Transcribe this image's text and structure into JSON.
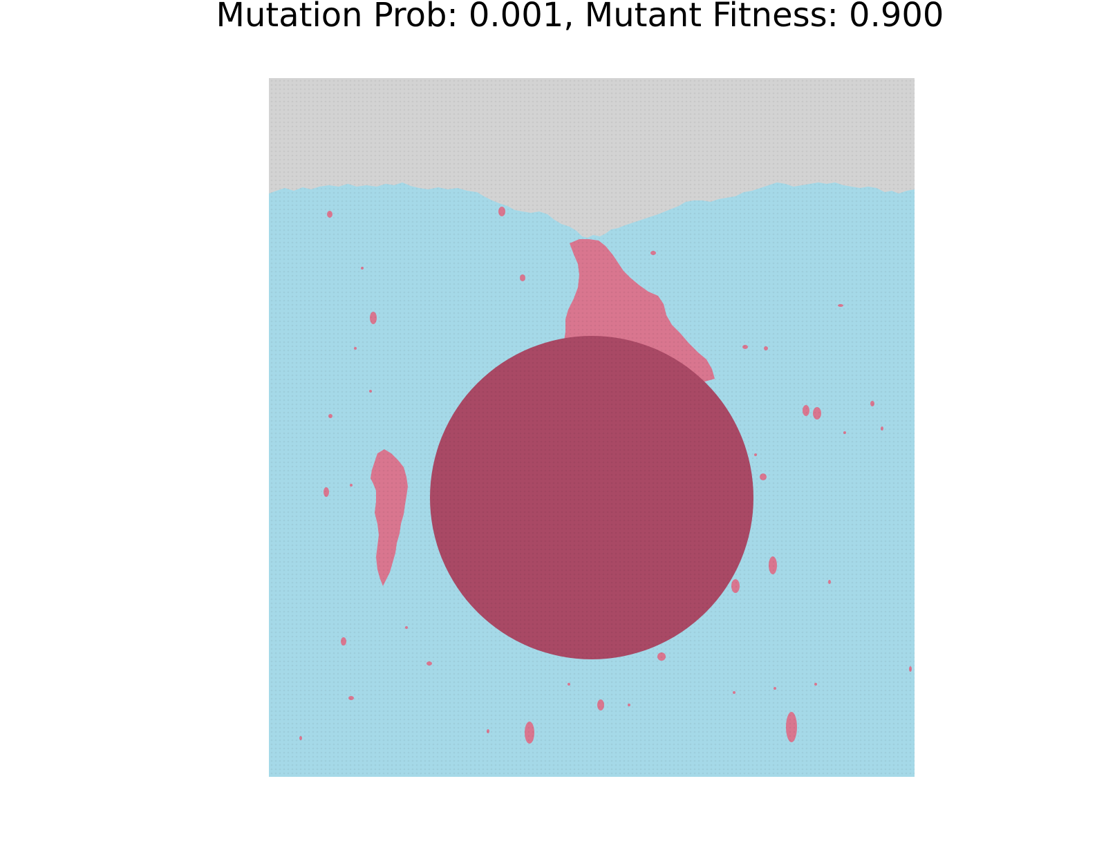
{
  "chart_data": {
    "type": "heatmap",
    "title": "Mutation Prob: 0.001, Mutant Fitness: 0.900",
    "xlabel": "",
    "ylabel": "",
    "axes_visible": false,
    "grid": false,
    "legend": "none",
    "lattice": "hexagonal",
    "mutation_probability": 0.001,
    "mutant_fitness": 0.9,
    "cell_states": [
      {
        "state": "empty",
        "color": "#d3d3d3"
      },
      {
        "state": "wild-type",
        "color": "#a5d9e8"
      },
      {
        "state": "mutant",
        "color": "#d9768f"
      },
      {
        "state": "obstacle",
        "color": "#a94965"
      }
    ]
  }
}
